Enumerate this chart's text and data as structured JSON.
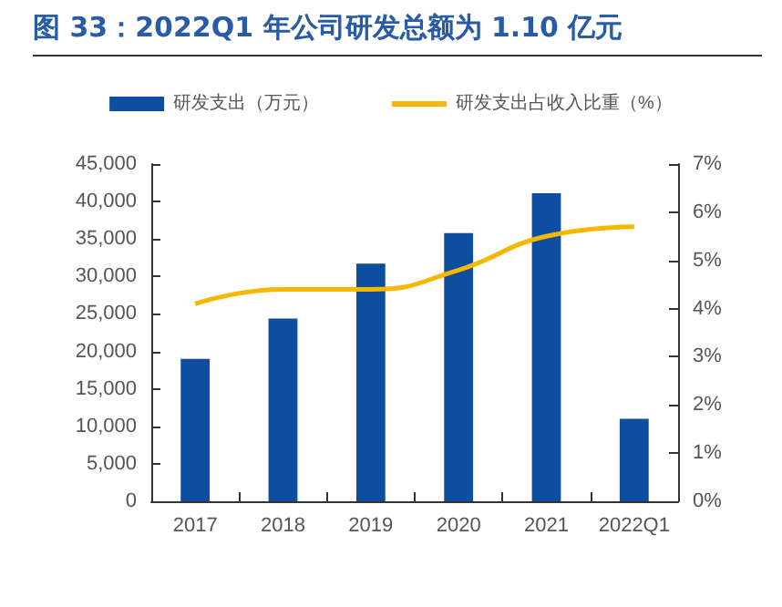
{
  "chart_data": {
    "type": "bar",
    "title": "图 33：2022Q1 年公司研发总额为 1.10 亿元",
    "categories": [
      "2017",
      "2018",
      "2019",
      "2020",
      "2021",
      "2022Q1"
    ],
    "series": [
      {
        "name": "研发支出（万元）",
        "color": "#0d4ea1",
        "values": [
          19000,
          24400,
          31700,
          35800,
          41100,
          11000
        ]
      },
      {
        "name": "研发支出占收入比重（%）",
        "type": "line",
        "axis": "y2",
        "color": "#f5b800",
        "marker": "none",
        "values": [
          4.1,
          4.4,
          4.4,
          4.8,
          5.5,
          5.7
        ]
      }
    ],
    "ylim": [
      0,
      45000
    ],
    "yticks": [
      0,
      {
        "value": 5000,
        "label": "5,000"
      },
      {
        "value": 10000,
        "label": "10,000"
      },
      {
        "value": 15000,
        "label": "15,000"
      },
      {
        "value": 20000,
        "label": "20,000"
      },
      {
        "value": 25000,
        "label": "25,000"
      },
      {
        "value": 30000,
        "label": "30,000"
      },
      {
        "value": 35000,
        "label": "35,000"
      },
      {
        "value": 40000,
        "label": "40,000"
      },
      {
        "value": 45000,
        "label": "45,000"
      }
    ],
    "y2lim": [
      0,
      7
    ],
    "y2ticks": [
      {
        "value": 0,
        "label": "0%"
      },
      {
        "value": 1,
        "label": "1%"
      },
      {
        "value": 2,
        "label": "2%"
      },
      {
        "value": 3,
        "label": "3%"
      },
      {
        "value": 4,
        "label": "4%"
      },
      {
        "value": 5,
        "label": "5%"
      },
      {
        "value": 6,
        "label": "6%"
      },
      {
        "value": 7,
        "label": "7%"
      }
    ],
    "legend": "top",
    "grid": false
  }
}
